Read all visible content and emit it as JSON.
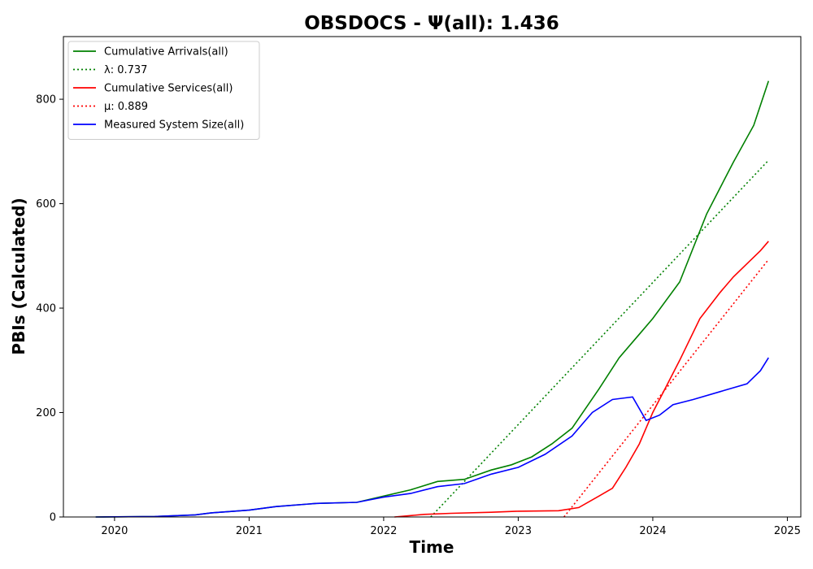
{
  "chart_data": {
    "type": "line",
    "title": "OBSDOCS -  Ψ(all): 1.436",
    "xlabel": "Time",
    "ylabel": "PBIs (Calculated)",
    "xlim": [
      2019.62,
      2025.1
    ],
    "ylim": [
      0,
      920
    ],
    "x_ticks": [
      2020,
      2021,
      2022,
      2023,
      2024,
      2025
    ],
    "x_tick_labels": [
      "2020",
      "2021",
      "2022",
      "2023",
      "2024",
      "2025"
    ],
    "y_ticks": [
      0,
      200,
      400,
      600,
      800
    ],
    "y_tick_labels": [
      "0",
      "200",
      "400",
      "600",
      "800"
    ],
    "grid": false,
    "legend_position": "upper-left",
    "series": [
      {
        "name": "Cumulative Arrivals(all)",
        "color": "#008000",
        "style": "solid",
        "x": [
          2019.86,
          2020.3,
          2020.6,
          2020.72,
          2021.0,
          2021.2,
          2021.5,
          2021.8,
          2022.0,
          2022.2,
          2022.4,
          2022.6,
          2022.8,
          2022.95,
          2023.1,
          2023.25,
          2023.4,
          2023.6,
          2023.75,
          2023.9,
          2024.0,
          2024.2,
          2024.4,
          2024.6,
          2024.75,
          2024.86
        ],
        "y": [
          0,
          1,
          4,
          8,
          13,
          20,
          26,
          28,
          40,
          52,
          68,
          72,
          90,
          100,
          115,
          140,
          170,
          245,
          305,
          350,
          380,
          450,
          580,
          680,
          750,
          835
        ]
      },
      {
        "name": "λ: 0.737",
        "color": "#008000",
        "style": "dotted",
        "x": [
          2022.35,
          2024.86
        ],
        "y": [
          0,
          683
        ]
      },
      {
        "name": "Cumulative Services(all)",
        "color": "#ff0000",
        "style": "solid",
        "x": [
          2022.08,
          2022.3,
          2022.5,
          2022.8,
          2023.0,
          2023.3,
          2023.45,
          2023.6,
          2023.7,
          2023.8,
          2023.9,
          2024.0,
          2024.1,
          2024.2,
          2024.35,
          2024.5,
          2024.6,
          2024.7,
          2024.8,
          2024.86
        ],
        "y": [
          0,
          5,
          7,
          9,
          11,
          12,
          18,
          40,
          55,
          95,
          140,
          200,
          250,
          300,
          380,
          430,
          460,
          485,
          510,
          528
        ]
      },
      {
        "name": "μ: 0.889",
        "color": "#ff0000",
        "style": "dotted",
        "x": [
          2023.34,
          2024.86
        ],
        "y": [
          0,
          493
        ]
      },
      {
        "name": "Measured System Size(all)",
        "color": "#0000ff",
        "style": "solid",
        "x": [
          2019.86,
          2020.3,
          2020.6,
          2020.72,
          2021.0,
          2021.2,
          2021.5,
          2021.8,
          2022.0,
          2022.2,
          2022.4,
          2022.6,
          2022.8,
          2023.0,
          2023.2,
          2023.4,
          2023.55,
          2023.7,
          2023.85,
          2023.95,
          2024.05,
          2024.15,
          2024.3,
          2024.5,
          2024.7,
          2024.8,
          2024.86
        ],
        "y": [
          0,
          1,
          4,
          8,
          13,
          20,
          26,
          28,
          38,
          45,
          58,
          64,
          82,
          95,
          120,
          155,
          200,
          225,
          230,
          185,
          195,
          215,
          225,
          240,
          255,
          280,
          305
        ]
      }
    ]
  }
}
